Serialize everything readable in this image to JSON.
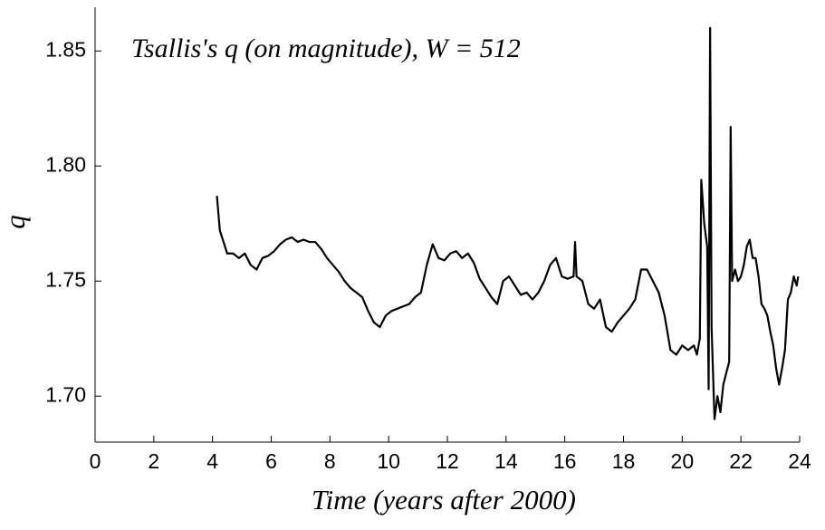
{
  "chart_data": {
    "type": "line",
    "title": "Tsallis's q (on magnitude), W = 512",
    "x_label": "Time (years after 2000)",
    "y_label": "q",
    "color": "#000000",
    "xlim": [
      0,
      24
    ],
    "ylim": [
      1.68,
      1.869
    ],
    "xticks": [
      0,
      2,
      4,
      6,
      8,
      10,
      12,
      14,
      16,
      18,
      20,
      22,
      24
    ],
    "yticks": [
      {
        "value": 1.7,
        "label": "1.70"
      },
      1.75,
      {
        "value": 1.8,
        "label": "1.80"
      },
      1.85
    ],
    "x": [
      4.15,
      4.25,
      4.35,
      4.5,
      4.7,
      4.9,
      5.1,
      5.3,
      5.5,
      5.7,
      5.9,
      6.1,
      6.3,
      6.5,
      6.7,
      6.9,
      7.1,
      7.3,
      7.5,
      7.7,
      7.9,
      8.1,
      8.3,
      8.5,
      8.7,
      8.9,
      9.1,
      9.3,
      9.5,
      9.7,
      9.9,
      10.1,
      10.3,
      10.5,
      10.7,
      10.9,
      11.1,
      11.3,
      11.5,
      11.7,
      11.9,
      12.1,
      12.3,
      12.5,
      12.7,
      12.9,
      13.1,
      13.3,
      13.5,
      13.7,
      13.9,
      14.1,
      14.3,
      14.5,
      14.7,
      14.9,
      15.1,
      15.3,
      15.5,
      15.7,
      15.9,
      16.1,
      16.3,
      16.35,
      16.4,
      16.6,
      16.8,
      17.0,
      17.2,
      17.4,
      17.6,
      17.8,
      18.0,
      18.2,
      18.4,
      18.6,
      18.8,
      19.0,
      19.2,
      19.4,
      19.6,
      19.8,
      20.0,
      20.2,
      20.4,
      20.5,
      20.6,
      20.65,
      20.75,
      20.85,
      20.9,
      20.95,
      21.0,
      21.1,
      21.2,
      21.3,
      21.4,
      21.5,
      21.6,
      21.65,
      21.7,
      21.8,
      21.9,
      22.0,
      22.1,
      22.2,
      22.3,
      22.4,
      22.5,
      22.6,
      22.7,
      22.8,
      22.9,
      23.0,
      23.1,
      23.2,
      23.3,
      23.4,
      23.5,
      23.6,
      23.7,
      23.8,
      23.9,
      23.95
    ],
    "values": [
      1.787,
      1.772,
      1.768,
      1.762,
      1.762,
      1.76,
      1.762,
      1.757,
      1.755,
      1.76,
      1.761,
      1.763,
      1.766,
      1.768,
      1.769,
      1.767,
      1.768,
      1.767,
      1.767,
      1.764,
      1.76,
      1.757,
      1.754,
      1.75,
      1.747,
      1.745,
      1.743,
      1.737,
      1.732,
      1.73,
      1.735,
      1.737,
      1.738,
      1.739,
      1.74,
      1.743,
      1.745,
      1.757,
      1.766,
      1.76,
      1.759,
      1.762,
      1.763,
      1.76,
      1.762,
      1.758,
      1.751,
      1.747,
      1.743,
      1.74,
      1.75,
      1.752,
      1.748,
      1.744,
      1.745,
      1.742,
      1.745,
      1.75,
      1.757,
      1.76,
      1.752,
      1.751,
      1.752,
      1.767,
      1.752,
      1.75,
      1.74,
      1.738,
      1.742,
      1.73,
      1.728,
      1.732,
      1.735,
      1.738,
      1.742,
      1.755,
      1.755,
      1.75,
      1.745,
      1.735,
      1.72,
      1.718,
      1.722,
      1.72,
      1.722,
      1.718,
      1.725,
      1.794,
      1.775,
      1.765,
      1.703,
      1.86,
      1.73,
      1.69,
      1.7,
      1.693,
      1.705,
      1.71,
      1.715,
      1.817,
      1.75,
      1.755,
      1.75,
      1.752,
      1.757,
      1.765,
      1.768,
      1.76,
      1.76,
      1.752,
      1.74,
      1.738,
      1.735,
      1.728,
      1.722,
      1.712,
      1.705,
      1.712,
      1.72,
      1.742,
      1.745,
      1.752,
      1.748,
      1.752
    ]
  }
}
